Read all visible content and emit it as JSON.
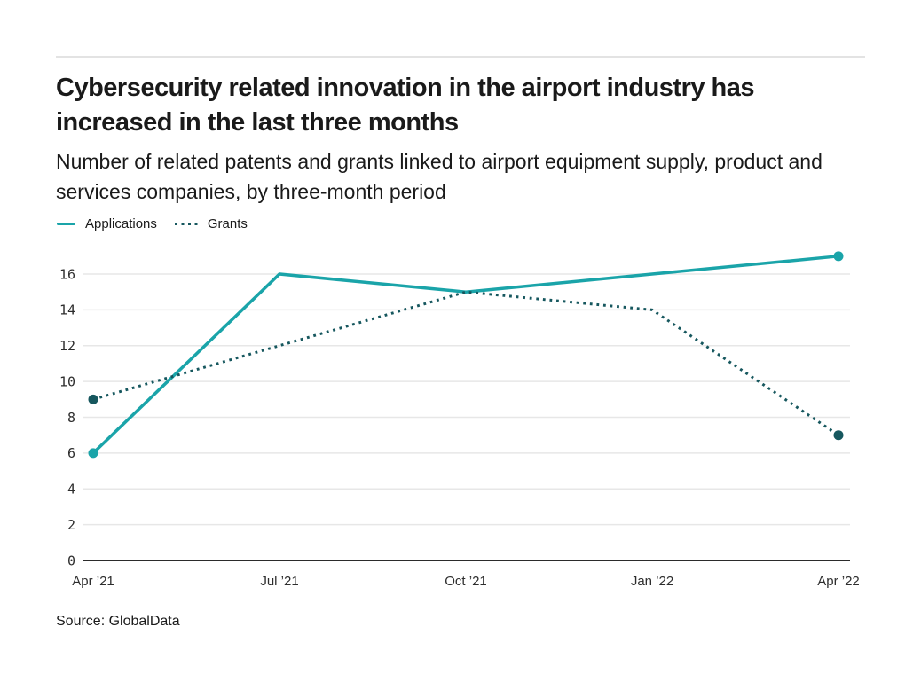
{
  "header": {
    "title": "Cybersecurity related innovation in the airport industry has increased in the last three months",
    "subtitle": "Number of related patents and grants linked to airport equipment supply, product and services companies, by three-month period"
  },
  "colors": {
    "applications": "#1aa4a9",
    "grants": "#16575e",
    "gridline": "#e7e7e7",
    "axis": "#2b2b2b",
    "rule": "#e3e3e3"
  },
  "chart_data": {
    "type": "line",
    "title": "Cybersecurity related innovation in the airport industry has increased in the last three months",
    "subtitle": "Number of related patents and grants linked to airport equipment supply, product and services companies, by three-month period",
    "categories": [
      "Apr ’21",
      "Jul ’21",
      "Oct ’21",
      "Jan ’22",
      "Apr ’22"
    ],
    "series": [
      {
        "name": "Applications",
        "style": "solid",
        "color": "#1aa4a9",
        "values": [
          6,
          16,
          15,
          16,
          17
        ],
        "end_markers": true
      },
      {
        "name": "Grants",
        "style": "dotted",
        "color": "#16575e",
        "values": [
          9,
          12,
          15,
          14,
          7
        ],
        "end_markers": true
      }
    ],
    "xlabel": "",
    "ylabel": "",
    "ylim": [
      0,
      16
    ],
    "yticks": [
      0,
      2,
      4,
      6,
      8,
      10,
      12,
      14,
      16
    ],
    "grid": "horizontal",
    "legend_position": "top-left"
  },
  "source": {
    "label": "Source: GlobalData"
  }
}
